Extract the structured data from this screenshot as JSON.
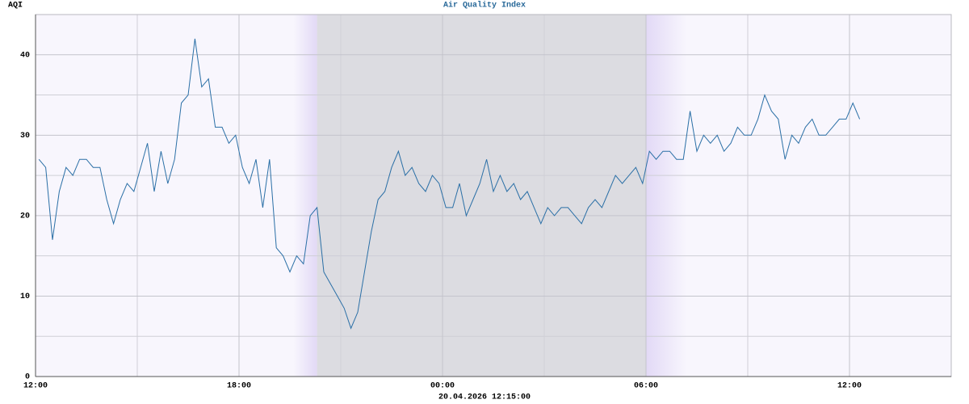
{
  "chart_data": {
    "type": "line",
    "title": "Air Quality Index",
    "y_label": "AQI",
    "x_label": "20.04.2026 12:15:00",
    "color": "#2a6fa6",
    "background": "#f8f6fd",
    "night": {
      "from": 20.3,
      "to": 30.0,
      "color": "#dcdce1"
    },
    "twilight": [
      {
        "from": 19.6,
        "to": 20.3
      },
      {
        "from": 30.0,
        "to": 31.2
      }
    ],
    "twilight_color": "#e2d9f6",
    "grid": true,
    "xlim": [
      12,
      39
    ],
    "xticks": [
      {
        "value": 12,
        "label": "12:00"
      },
      {
        "value": 18,
        "label": "18:00"
      },
      {
        "value": 24,
        "label": "00:00"
      },
      {
        "value": 30,
        "label": "06:00"
      },
      {
        "value": 36,
        "label": "12:00"
      }
    ],
    "x_minor_ticks": [
      15,
      21,
      27,
      33
    ],
    "ylim": [
      0,
      45
    ],
    "yticks": [
      0,
      10,
      20,
      30,
      40
    ],
    "y_minor_ticks": [
      5,
      15,
      25,
      35
    ],
    "x": [
      12.1,
      12.3,
      12.5,
      12.7,
      12.9,
      13.1,
      13.3,
      13.5,
      13.7,
      13.9,
      14.1,
      14.3,
      14.5,
      14.7,
      14.9,
      15.1,
      15.3,
      15.5,
      15.7,
      15.9,
      16.1,
      16.3,
      16.5,
      16.7,
      16.9,
      17.1,
      17.3,
      17.5,
      17.7,
      17.9,
      18.1,
      18.3,
      18.5,
      18.7,
      18.9,
      19.1,
      19.3,
      19.5,
      19.7,
      19.9,
      20.1,
      20.3,
      20.5,
      20.7,
      20.9,
      21.1,
      21.3,
      21.5,
      21.7,
      21.9,
      22.1,
      22.3,
      22.5,
      22.7,
      22.9,
      23.1,
      23.3,
      23.5,
      23.7,
      23.9,
      24.1,
      24.3,
      24.5,
      24.7,
      24.9,
      25.1,
      25.3,
      25.5,
      25.7,
      25.9,
      26.1,
      26.3,
      26.5,
      26.7,
      26.9,
      27.1,
      27.3,
      27.5,
      27.7,
      27.9,
      28.1,
      28.3,
      28.5,
      28.7,
      28.9,
      29.1,
      29.3,
      29.5,
      29.7,
      29.9,
      30.1,
      30.3,
      30.5,
      30.7,
      30.9,
      31.1,
      31.3,
      31.5,
      31.7,
      31.9,
      32.1,
      32.3,
      32.5,
      32.7,
      32.9,
      33.1,
      33.3,
      33.5,
      33.7,
      33.9,
      34.1,
      34.3,
      34.5,
      34.7,
      34.9,
      35.1,
      35.3,
      35.5,
      35.7,
      35.9,
      36.1,
      36.3
    ],
    "values": [
      27,
      26,
      17,
      23,
      26,
      25,
      27,
      27,
      26,
      26,
      22,
      19,
      22,
      24,
      23,
      26,
      29,
      23,
      28,
      24,
      27,
      34,
      35,
      42,
      36,
      37,
      31,
      31,
      29,
      30,
      26,
      24,
      27,
      21,
      27,
      16,
      15,
      13,
      15,
      14,
      20,
      21,
      13,
      11.5,
      10,
      8.5,
      6,
      8,
      13,
      18,
      22,
      23,
      26,
      28,
      25,
      26,
      24,
      23,
      25,
      24,
      21,
      21,
      24,
      20,
      22,
      24,
      27,
      23,
      25,
      23,
      24,
      22,
      23,
      21,
      19,
      21,
      20,
      21,
      21,
      20,
      19,
      21,
      22,
      21,
      23,
      25,
      24,
      25,
      26,
      24,
      28,
      27,
      28,
      28,
      27,
      27,
      33,
      28,
      30,
      29,
      30,
      28,
      29,
      31,
      30,
      30,
      32,
      35,
      33,
      32,
      27,
      30,
      29,
      31,
      32,
      30,
      30,
      31,
      32,
      32,
      34,
      32
    ]
  }
}
